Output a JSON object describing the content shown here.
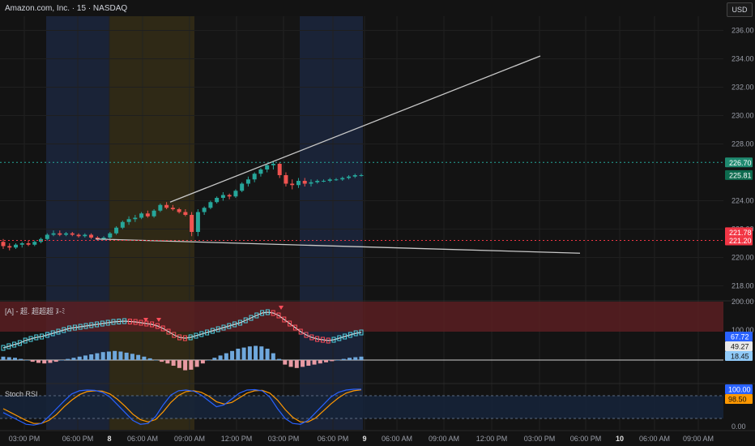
{
  "header": {
    "symbol_title": "Amazon.com, Inc. · 15 · NASDAQ",
    "currency_button": "USD"
  },
  "price_axis": {
    "ticks": [
      "236.00",
      "234.00",
      "232.00",
      "230.00",
      "228.00",
      "224.00",
      "222.00",
      "220.00",
      "218.00"
    ]
  },
  "price_tags": [
    {
      "label": "226.70",
      "bg": "#1f8a70",
      "fg": "#ffffff"
    },
    {
      "label": "225.81",
      "bg": "#0e6b4f",
      "fg": "#ffffff"
    },
    {
      "label": "221.78",
      "bg": "#f23645",
      "fg": "#ffffff"
    },
    {
      "label": "221.20",
      "bg": "#f23645",
      "fg": "#ffffff"
    }
  ],
  "indicator1": {
    "label": "[A] - 超. 超超超 ﾇ-ﾐ",
    "axis_ticks": [
      "200.00",
      "100.00"
    ],
    "tags": [
      {
        "label": "67.72",
        "bg": "#2962ff",
        "fg": "#ffffff"
      },
      {
        "label": "49.27",
        "bg": "#e8e8e8",
        "fg": "#131313"
      },
      {
        "label": "18.45",
        "bg": "#90caf9",
        "fg": "#131313"
      }
    ]
  },
  "indicator2": {
    "label": "Stoch RSI",
    "axis_ticks": [
      "0.00"
    ],
    "tags": [
      {
        "label": "100.00",
        "bg": "#2962ff",
        "fg": "#ffffff"
      },
      {
        "label": "98.50",
        "bg": "#ff9800",
        "fg": "#131313"
      }
    ]
  },
  "time_axis": {
    "labels": [
      "03:00 PM",
      "06:00 PM",
      "8",
      "06:00 AM",
      "09:00 AM",
      "12:00 PM",
      "03:00 PM",
      "06:00 PM",
      "9",
      "06:00 AM",
      "09:00 AM",
      "12:00 PM",
      "03:00 PM",
      "06:00 PM",
      "10",
      "06:00 AM",
      "09:00 AM"
    ]
  },
  "chart_data": {
    "type": "candlestick",
    "title": "Amazon.com, Inc. · 15 · NASDAQ",
    "currency": "USD",
    "ylim": [
      217,
      237
    ],
    "price_series": [
      {
        "o": 221.1,
        "h": 221.3,
        "l": 220.6,
        "c": 220.8
      },
      {
        "o": 220.8,
        "h": 221.0,
        "l": 220.5,
        "c": 220.7
      },
      {
        "o": 220.7,
        "h": 221.0,
        "l": 220.6,
        "c": 220.9
      },
      {
        "o": 220.9,
        "h": 221.1,
        "l": 220.7,
        "c": 221.0
      },
      {
        "o": 221.0,
        "h": 221.2,
        "l": 220.8,
        "c": 220.9
      },
      {
        "o": 220.9,
        "h": 221.2,
        "l": 220.8,
        "c": 221.1
      },
      {
        "o": 221.1,
        "h": 221.4,
        "l": 221.0,
        "c": 221.3
      },
      {
        "o": 221.3,
        "h": 221.7,
        "l": 221.2,
        "c": 221.6
      },
      {
        "o": 221.6,
        "h": 221.9,
        "l": 221.5,
        "c": 221.7
      },
      {
        "o": 221.7,
        "h": 221.9,
        "l": 221.5,
        "c": 221.6
      },
      {
        "o": 221.6,
        "h": 221.8,
        "l": 221.5,
        "c": 221.7
      },
      {
        "o": 221.7,
        "h": 221.8,
        "l": 221.5,
        "c": 221.6
      },
      {
        "o": 221.6,
        "h": 221.7,
        "l": 221.4,
        "c": 221.5
      },
      {
        "o": 221.5,
        "h": 221.7,
        "l": 221.4,
        "c": 221.6
      },
      {
        "o": 221.6,
        "h": 221.7,
        "l": 221.3,
        "c": 221.4
      },
      {
        "o": 221.4,
        "h": 221.5,
        "l": 221.2,
        "c": 221.3
      },
      {
        "o": 221.3,
        "h": 221.5,
        "l": 221.2,
        "c": 221.4
      },
      {
        "o": 221.4,
        "h": 221.8,
        "l": 221.3,
        "c": 221.7
      },
      {
        "o": 221.7,
        "h": 222.2,
        "l": 221.6,
        "c": 222.1
      },
      {
        "o": 222.1,
        "h": 222.6,
        "l": 222.0,
        "c": 222.5
      },
      {
        "o": 222.5,
        "h": 222.9,
        "l": 222.3,
        "c": 222.7
      },
      {
        "o": 222.7,
        "h": 223.0,
        "l": 222.5,
        "c": 222.8
      },
      {
        "o": 222.8,
        "h": 223.2,
        "l": 222.7,
        "c": 223.1
      },
      {
        "o": 223.1,
        "h": 223.3,
        "l": 222.8,
        "c": 222.9
      },
      {
        "o": 222.9,
        "h": 223.4,
        "l": 222.8,
        "c": 223.3
      },
      {
        "o": 223.3,
        "h": 223.8,
        "l": 223.2,
        "c": 223.7
      },
      {
        "o": 223.7,
        "h": 223.9,
        "l": 223.4,
        "c": 223.5
      },
      {
        "o": 223.5,
        "h": 223.7,
        "l": 223.3,
        "c": 223.4
      },
      {
        "o": 223.4,
        "h": 223.5,
        "l": 223.1,
        "c": 223.2
      },
      {
        "o": 223.2,
        "h": 223.4,
        "l": 222.9,
        "c": 223.0
      },
      {
        "o": 223.0,
        "h": 223.2,
        "l": 221.5,
        "c": 221.8
      },
      {
        "o": 221.8,
        "h": 223.4,
        "l": 221.5,
        "c": 223.2
      },
      {
        "o": 223.2,
        "h": 223.6,
        "l": 223.0,
        "c": 223.5
      },
      {
        "o": 223.5,
        "h": 224.0,
        "l": 223.4,
        "c": 223.9
      },
      {
        "o": 223.9,
        "h": 224.3,
        "l": 223.8,
        "c": 224.2
      },
      {
        "o": 224.2,
        "h": 224.6,
        "l": 224.0,
        "c": 224.4
      },
      {
        "o": 224.4,
        "h": 224.5,
        "l": 224.1,
        "c": 224.3
      },
      {
        "o": 224.3,
        "h": 224.8,
        "l": 224.2,
        "c": 224.7
      },
      {
        "o": 224.7,
        "h": 225.3,
        "l": 224.6,
        "c": 225.2
      },
      {
        "o": 225.2,
        "h": 225.7,
        "l": 225.0,
        "c": 225.5
      },
      {
        "o": 225.5,
        "h": 226.0,
        "l": 225.3,
        "c": 225.9
      },
      {
        "o": 225.9,
        "h": 226.3,
        "l": 225.7,
        "c": 226.2
      },
      {
        "o": 226.2,
        "h": 226.6,
        "l": 226.0,
        "c": 226.5
      },
      {
        "o": 226.5,
        "h": 226.8,
        "l": 226.2,
        "c": 226.6
      },
      {
        "o": 226.6,
        "h": 226.7,
        "l": 225.6,
        "c": 225.8
      },
      {
        "o": 225.8,
        "h": 226.0,
        "l": 225.0,
        "c": 225.2
      },
      {
        "o": 225.2,
        "h": 225.5,
        "l": 224.8,
        "c": 225.1
      },
      {
        "o": 225.1,
        "h": 225.6,
        "l": 224.9,
        "c": 225.4
      },
      {
        "o": 225.4,
        "h": 225.6,
        "l": 225.0,
        "c": 225.2
      },
      {
        "o": 225.2,
        "h": 225.5,
        "l": 225.0,
        "c": 225.3
      },
      {
        "o": 225.3,
        "h": 225.5,
        "l": 225.2,
        "c": 225.4
      },
      {
        "o": 225.4,
        "h": 225.5,
        "l": 225.3,
        "c": 225.4
      },
      {
        "o": 225.4,
        "h": 225.6,
        "l": 225.3,
        "c": 225.5
      },
      {
        "o": 225.5,
        "h": 225.6,
        "l": 225.4,
        "c": 225.5
      },
      {
        "o": 225.5,
        "h": 225.7,
        "l": 225.4,
        "c": 225.6
      },
      {
        "o": 225.6,
        "h": 225.8,
        "l": 225.5,
        "c": 225.7
      },
      {
        "o": 225.7,
        "h": 225.9,
        "l": 225.6,
        "c": 225.8
      },
      {
        "o": 225.8,
        "h": 225.9,
        "l": 225.7,
        "c": 225.8
      }
    ],
    "horizontal_levels": [
      226.7,
      221.2
    ],
    "sessions": [
      "pre-market",
      "regular",
      "post-market"
    ],
    "indicator_rsi_style": [
      30,
      34,
      38,
      42,
      48,
      52,
      56,
      58,
      62,
      66,
      70,
      74,
      78,
      80,
      82,
      84,
      86,
      88,
      90,
      92,
      94,
      95,
      96,
      95,
      94,
      92,
      90,
      88,
      84,
      78,
      70,
      62,
      56,
      54,
      56,
      60,
      64,
      68,
      72,
      76,
      80,
      84,
      88,
      92,
      98,
      104,
      110,
      116,
      118,
      116,
      110,
      100,
      90,
      80,
      70,
      62,
      56,
      52,
      50,
      48,
      50,
      54,
      58,
      62,
      66,
      68
    ],
    "indicator_histogram": [
      6,
      5,
      4,
      2,
      0,
      -3,
      -5,
      -6,
      -5,
      -3,
      0,
      2,
      4,
      6,
      8,
      10,
      12,
      14,
      15,
      16,
      15,
      13,
      11,
      9,
      6,
      3,
      0,
      -3,
      -6,
      -10,
      -14,
      -18,
      -17,
      -12,
      -6,
      0,
      4,
      8,
      12,
      16,
      20,
      22,
      24,
      25,
      24,
      20,
      12,
      2,
      -8,
      -12,
      -14,
      -12,
      -10,
      -8,
      -6,
      -4,
      -2,
      0,
      2,
      4,
      5,
      6
    ],
    "stoch_k": [
      40,
      30,
      20,
      10,
      8,
      12,
      30,
      50,
      70,
      88,
      96,
      98,
      97,
      92,
      80,
      60,
      40,
      20,
      10,
      12,
      30,
      60,
      85,
      96,
      98,
      95,
      85,
      70,
      55,
      60,
      75,
      90,
      98,
      99,
      96,
      80,
      50,
      25,
      12,
      10,
      20,
      40,
      60,
      80,
      92,
      98,
      100,
      100
    ],
    "stoch_d": [
      50,
      40,
      30,
      20,
      12,
      12,
      20,
      35,
      55,
      72,
      86,
      94,
      96,
      95,
      88,
      74,
      56,
      36,
      22,
      16,
      22,
      42,
      66,
      84,
      94,
      96,
      92,
      82,
      68,
      62,
      66,
      78,
      90,
      96,
      97,
      90,
      72,
      48,
      28,
      16,
      16,
      26,
      44,
      62,
      78,
      90,
      96,
      98.5
    ]
  }
}
